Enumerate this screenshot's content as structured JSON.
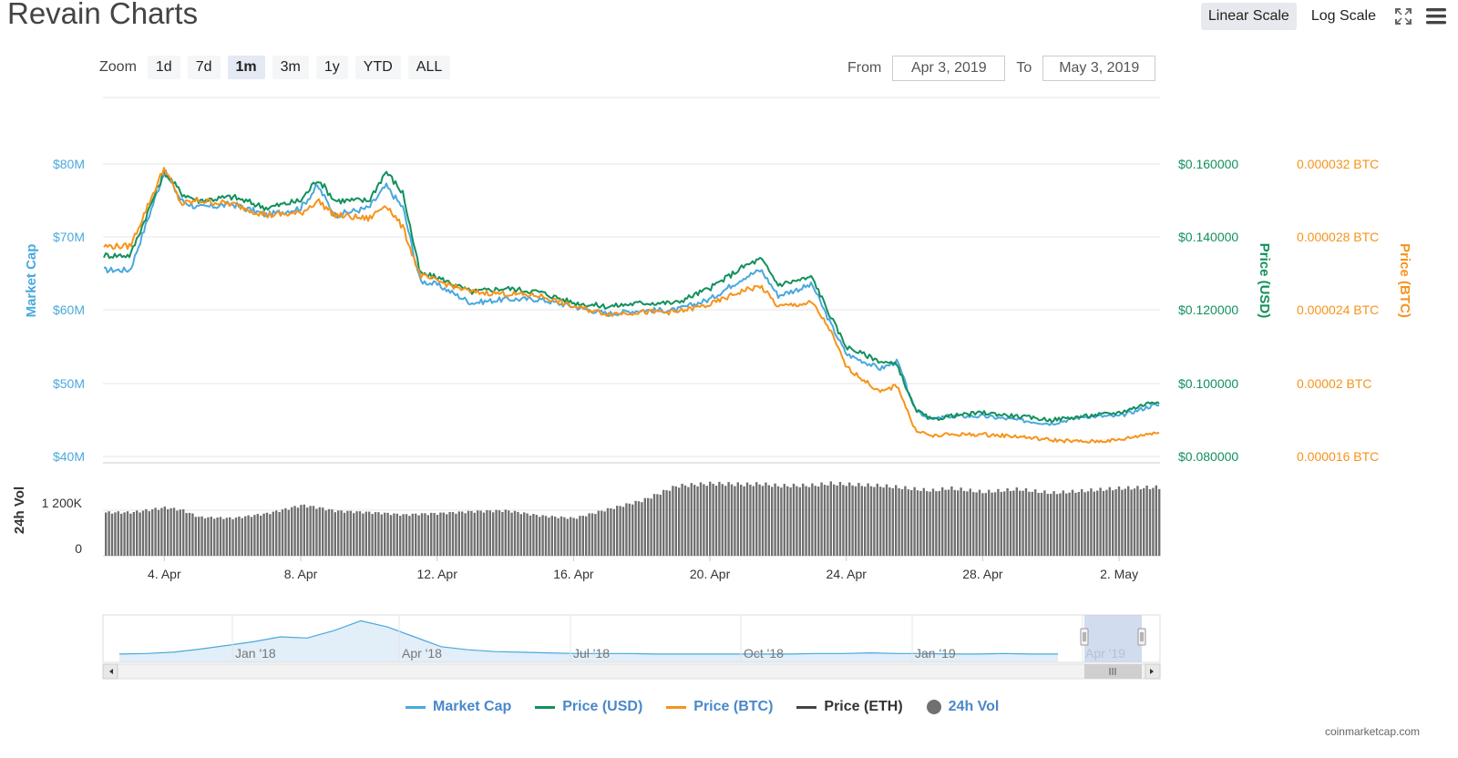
{
  "title": "Revain Charts",
  "toolbar": {
    "linear_scale": "Linear Scale",
    "log_scale": "Log Scale",
    "fullscreen_icon": "expand-icon",
    "menu_icon": "hamburger-menu-icon"
  },
  "zoom": {
    "label": "Zoom",
    "buttons": [
      "1d",
      "7d",
      "1m",
      "3m",
      "1y",
      "YTD",
      "ALL"
    ],
    "active": "1m"
  },
  "range": {
    "from_label": "From",
    "from_value": "Apr 3, 2019",
    "to_label": "To",
    "to_value": "May 3, 2019"
  },
  "credit": "coinmarketcap.com",
  "colors": {
    "market_cap": "#4aa8de",
    "price_usd": "#12905c",
    "price_btc": "#f7931a",
    "price_eth": "#444444",
    "volume": "#707070",
    "grid": "#e6e6e6",
    "nav_fill": "#cfe3f3",
    "nav_selection": "#c6d3ea"
  },
  "chart_data": {
    "type": "line",
    "x_ticks": [
      "4. Apr",
      "8. Apr",
      "12. Apr",
      "16. Apr",
      "20. Apr",
      "24. Apr",
      "28. Apr",
      "2. May"
    ],
    "x_days": [
      3.0,
      4.0,
      4.5,
      5.0,
      6.0,
      7.0,
      8.0,
      8.5,
      9.0,
      10.0,
      10.5,
      11.0,
      11.5,
      12.0,
      13.0,
      14.0,
      15.0,
      16.0,
      17.0,
      18.0,
      19.0,
      20.0,
      21.0,
      21.5,
      22.0,
      23.0,
      23.5,
      24.0,
      25.0,
      25.5,
      26.0,
      26.5,
      27.0,
      28.0,
      29.0,
      30.0,
      31.0,
      32.0,
      33.0
    ],
    "axes": {
      "market_cap": {
        "label": "Market Cap",
        "ticks": [
          "$40M",
          "$50M",
          "$60M",
          "$70M",
          "$80M"
        ],
        "range": [
          40,
          82
        ]
      },
      "price_usd": {
        "label": "Price (USD)",
        "ticks": [
          "$0.080000",
          "$0.100000",
          "$0.120000",
          "$0.140000",
          "$0.160000"
        ],
        "range": [
          0.08,
          0.164
        ]
      },
      "price_btc": {
        "label": "Price (BTC)",
        "ticks": [
          "0.000016 BTC",
          "0.00002 BTC",
          "0.000024 BTC",
          "0.000028 BTC",
          "0.000032 BTC"
        ],
        "range": [
          1.6e-05,
          3.28e-05
        ]
      },
      "volume": {
        "label": "24h Vol",
        "ticks": [
          "0",
          "1 200K"
        ],
        "range": [
          0,
          1800000
        ]
      }
    },
    "series": [
      {
        "name": "Market Cap",
        "axis": "market_cap",
        "values": [
          65.5,
          79.0,
          75.0,
          74.0,
          74.5,
          73.0,
          74.0,
          77.0,
          73.0,
          74.0,
          77.0,
          74.0,
          64.0,
          63.5,
          61.0,
          61.5,
          61.5,
          60.5,
          59.5,
          60.0,
          60.0,
          61.5,
          64.5,
          65.5,
          62.0,
          63.5,
          58.5,
          54.0,
          52.0,
          53.0,
          46.5,
          45.0,
          45.5,
          45.5,
          45.0,
          44.5,
          45.5,
          45.5,
          47.0
        ]
      },
      {
        "name": "Price (USD)",
        "axis": "price_usd",
        "values": [
          0.135,
          0.158,
          0.152,
          0.15,
          0.151,
          0.148,
          0.15,
          0.156,
          0.15,
          0.15,
          0.158,
          0.152,
          0.13,
          0.129,
          0.125,
          0.126,
          0.125,
          0.122,
          0.121,
          0.122,
          0.122,
          0.126,
          0.132,
          0.134,
          0.127,
          0.129,
          0.119,
          0.11,
          0.106,
          0.105,
          0.093,
          0.09,
          0.091,
          0.092,
          0.091,
          0.09,
          0.091,
          0.092,
          0.095
        ]
      },
      {
        "name": "Price (BTC)",
        "axis": "price_btc",
        "values": [
          2.75e-05,
          3.18e-05,
          2.98e-05,
          3e-05,
          2.98e-05,
          2.92e-05,
          2.93e-05,
          3e-05,
          2.92e-05,
          2.9e-05,
          2.98e-05,
          2.85e-05,
          2.59e-05,
          2.56e-05,
          2.5e-05,
          2.49e-05,
          2.48e-05,
          2.42e-05,
          2.38e-05,
          2.39e-05,
          2.39e-05,
          2.43e-05,
          2.51e-05,
          2.53e-05,
          2.42e-05,
          2.44e-05,
          2.3e-05,
          2.09e-05,
          1.95e-05,
          1.99e-05,
          1.75e-05,
          1.71e-05,
          1.72e-05,
          1.72e-05,
          1.71e-05,
          1.69e-05,
          1.68e-05,
          1.69e-05,
          1.73e-05
        ]
      },
      {
        "name": "Price (ETH)",
        "axis": "price_usd",
        "values": []
      },
      {
        "name": "24h Vol",
        "axis": "volume",
        "type": "bar",
        "values": [
          900000,
          1000000,
          950000,
          800000,
          780000,
          880000,
          1050000,
          1000000,
          930000,
          900000,
          880000,
          850000,
          870000,
          880000,
          920000,
          940000,
          830000,
          780000,
          970000,
          1150000,
          1450000,
          1500000,
          1480000,
          1490000,
          1450000,
          1460000,
          1500000,
          1480000,
          1450000,
          1420000,
          1380000,
          1350000,
          1400000,
          1320000,
          1380000,
          1300000,
          1350000,
          1400000,
          1420000
        ]
      }
    ],
    "navigator": {
      "x_labels": [
        "Jan '18",
        "Apr '18",
        "Jul '18",
        "Oct '18",
        "Jan '19",
        "Apr '19"
      ],
      "values": [
        6,
        7,
        9,
        14,
        20,
        26,
        34,
        32,
        44,
        60,
        50,
        34,
        18,
        13,
        10,
        9,
        8,
        7,
        7,
        7,
        6,
        6,
        6,
        6,
        6,
        6,
        7,
        7,
        8,
        7,
        7,
        6,
        6,
        7,
        6,
        6
      ],
      "selection": [
        "Apr 3, 2019",
        "May 3, 2019"
      ]
    },
    "legend_position": "bottom",
    "grid": true
  }
}
